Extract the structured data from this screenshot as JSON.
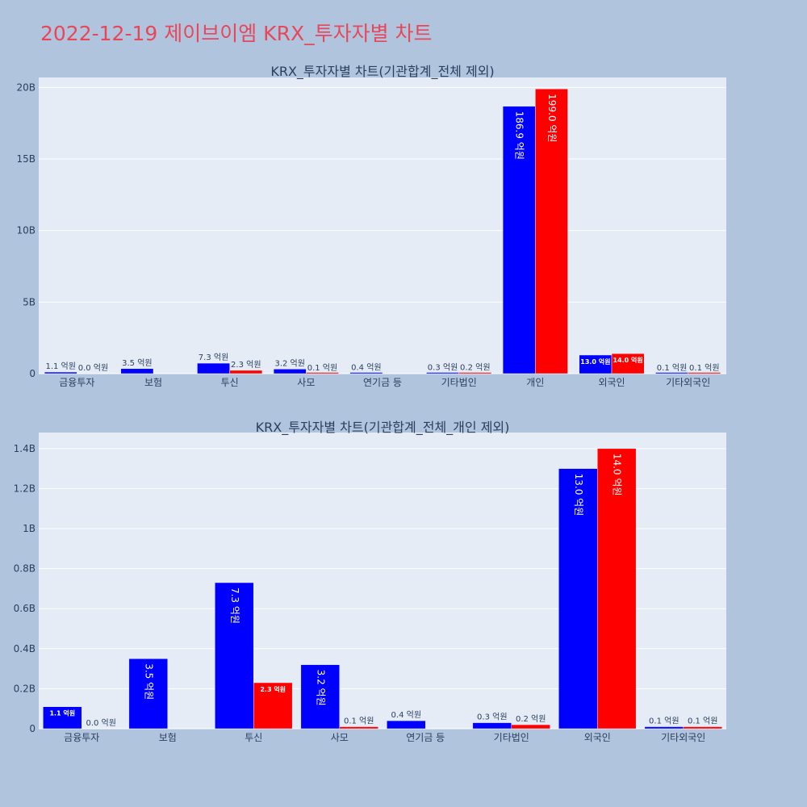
{
  "page": {
    "title": "2022-12-19 제이브이엠 KRX_투자자별 차트"
  },
  "colors": {
    "background": "#b0c4de",
    "plot_bg": "#e5ecf6",
    "grid": "#ffffff",
    "buy": "#0000ff",
    "sell": "#ff0000",
    "title": "#e8475a",
    "text": "#2a3f5f"
  },
  "chart_data": [
    {
      "type": "bar",
      "title": "KRX_투자자별 차트(기관합계_전체 제외)",
      "categories": [
        "금융투자",
        "보험",
        "투신",
        "사모",
        "연기금 등",
        "기타법인",
        "개인",
        "외국인",
        "기타외국인"
      ],
      "series": [
        {
          "color": "#0000ff",
          "values": [
            110000000,
            350000000,
            730000000,
            320000000,
            40000000,
            30000000,
            18690000000,
            1300000000,
            10000000
          ],
          "labels": [
            "1.1 억원",
            "3.5 억원",
            "7.3 억원",
            "3.2 억원",
            "0.4 억원",
            "0.3 억원",
            "186.9 억원",
            "13.0 억원",
            "0.1 억원"
          ]
        },
        {
          "color": "#ff0000",
          "values": [
            0,
            0,
            230000000,
            10000000,
            0,
            20000000,
            19900000000,
            1400000000,
            10000000
          ],
          "labels": [
            "0.0 억원",
            "",
            "2.3 억원",
            "0.1 억원",
            "",
            "0.2 억원",
            "199.0 억원",
            "14.0 억원",
            "0.1 억원"
          ]
        }
      ],
      "ylim": [
        0,
        20700000000
      ],
      "yticks": [
        0,
        5000000000,
        10000000000,
        15000000000,
        20000000000
      ],
      "yticklabels": [
        "0",
        "5B",
        "10B",
        "15B",
        "20B"
      ],
      "grid": true
    },
    {
      "type": "bar",
      "title": "KRX_투자자별 차트(기관합계_전체_개인 제외)",
      "categories": [
        "금융투자",
        "보험",
        "투신",
        "사모",
        "연기금 등",
        "기타법인",
        "외국인",
        "기타외국인"
      ],
      "series": [
        {
          "color": "#0000ff",
          "values": [
            110000000,
            350000000,
            730000000,
            320000000,
            40000000,
            30000000,
            1300000000,
            10000000
          ],
          "labels": [
            "1.1 억원",
            "3.5 억원",
            "7.3 억원",
            "3.2 억원",
            "0.4 억원",
            "0.3 억원",
            "13.0 억원",
            "0.1 억원"
          ]
        },
        {
          "color": "#ff0000",
          "values": [
            0,
            0,
            230000000,
            10000000,
            0,
            20000000,
            1400000000,
            10000000
          ],
          "labels": [
            "0.0 억원",
            "",
            "2.3 억원",
            "0.1 억원",
            "",
            "0.2 억원",
            "14.0 억원",
            "0.1 억원"
          ]
        }
      ],
      "ylim": [
        0,
        1480000000
      ],
      "yticks": [
        0,
        200000000,
        400000000,
        600000000,
        800000000,
        1000000000,
        1200000000,
        1400000000
      ],
      "yticklabels": [
        "0",
        "0.2B",
        "0.4B",
        "0.6B",
        "0.8B",
        "1B",
        "1.2B",
        "1.4B"
      ],
      "grid": true
    }
  ]
}
